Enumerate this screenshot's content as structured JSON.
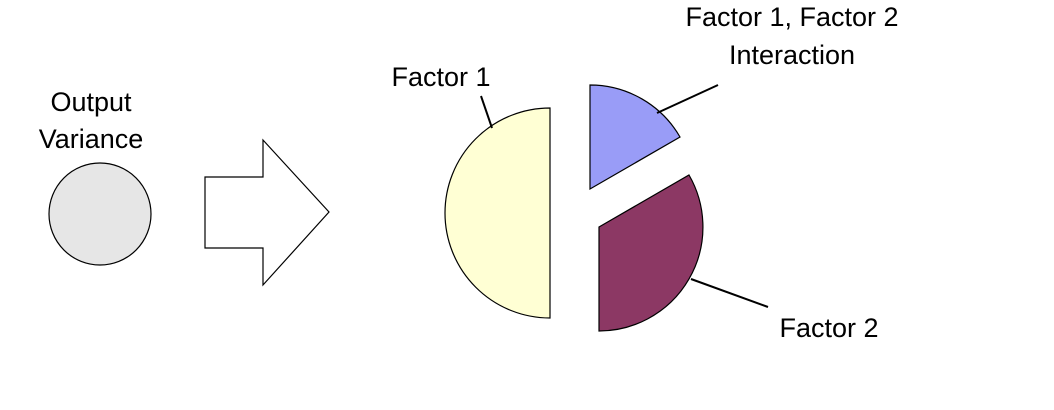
{
  "left": {
    "label_line1": "Output",
    "label_line2": "Variance",
    "circle_color": "#e6e6e6"
  },
  "arrow": {
    "fill": "#ffffff"
  },
  "pie": {
    "factor1": {
      "label": "Factor 1",
      "color": "#ffffd4"
    },
    "interaction": {
      "label_line1": "Factor 1, Factor 2",
      "label_line2": "Interaction",
      "color": "#999cf7"
    },
    "factor2": {
      "label": "Factor 2",
      "color": "#8c3864"
    }
  }
}
